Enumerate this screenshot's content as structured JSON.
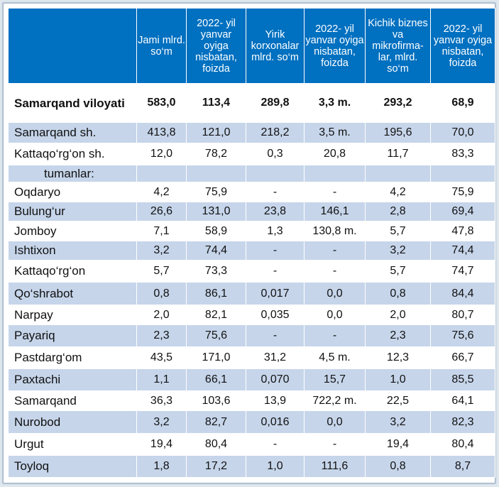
{
  "headers": [
    "",
    "Jami mlrd. so‘m",
    "2022- yil yanvar oyiga nisbatan, foizda",
    "Yirik korxonalar mlrd. so‘m",
    "2022- yil yanvar oyiga nisbatan, foizda",
    "Kichik biznes va mikrofirma-lar, mlrd. so‘m",
    "2022- yil yanvar oyiga nisbatan, foizda"
  ],
  "rows": [
    {
      "name": "Samarqand viloyati",
      "values": [
        "583,0",
        "113,4",
        "289,8",
        "3,3 m.",
        "293,2",
        "68,9"
      ]
    },
    {
      "name": "Samarqand sh.",
      "values": [
        "413,8",
        "121,0",
        "218,2",
        "3,5 m.",
        "195,6",
        "70,0"
      ]
    },
    {
      "name": "Kattaqo‘rg‘on  sh.",
      "values": [
        "12,0",
        "78,2",
        "0,3",
        "20,8",
        "11,7",
        "83,3"
      ]
    },
    {
      "name": "tumanlar:",
      "values": [
        "",
        "",
        "",
        "",
        "",
        ""
      ]
    },
    {
      "name": "Oqdaryo",
      "values": [
        "4,2",
        "75,9",
        "-",
        "-",
        "4,2",
        "75,9"
      ]
    },
    {
      "name": "Bulung‘ur",
      "values": [
        "26,6",
        "131,0",
        "23,8",
        "146,1",
        "2,8",
        "69,4"
      ]
    },
    {
      "name": "Jomboy",
      "values": [
        "7,1",
        "58,9",
        "1,3",
        "130,8 m.",
        "5,7",
        "47,8"
      ]
    },
    {
      "name": "Ishtixon",
      "values": [
        "3,2",
        "74,4",
        "-",
        "-",
        "3,2",
        "74,4"
      ]
    },
    {
      "name": "Kattaqo‘rg‘on",
      "values": [
        "5,7",
        "73,3",
        "-",
        "-",
        "5,7",
        "74,7"
      ]
    },
    {
      "name": "Qo‘shrabot",
      "values": [
        "0,8",
        "86,1",
        "0,017",
        "0,0",
        "0,8",
        "84,4"
      ]
    },
    {
      "name": "Narpay",
      "values": [
        "2,0",
        "82,1",
        "0,035",
        "0,0",
        "2,0",
        "80,7"
      ]
    },
    {
      "name": "Payariq",
      "values": [
        "2,3",
        "75,6",
        "-",
        "-",
        "2,3",
        "75,6"
      ]
    },
    {
      "name": "Pastdarg‘om",
      "values": [
        "43,5",
        "171,0",
        "31,2",
        "4,5 m.",
        "12,3",
        "66,7"
      ]
    },
    {
      "name": "Paxtachi",
      "values": [
        "1,1",
        "66,1",
        "0,070",
        "15,7",
        "1,0",
        "85,5"
      ]
    },
    {
      "name": "Samarqand",
      "values": [
        "36,3",
        "103,6",
        "13,9",
        "722,2 m.",
        "22,5",
        "64,1"
      ]
    },
    {
      "name": "Nurobod",
      "values": [
        "3,2",
        "82,7",
        "0,016",
        "0,0",
        "3,2",
        "82,3"
      ]
    },
    {
      "name": "Urgut",
      "values": [
        "19,4",
        "80,4",
        "-",
        "-",
        "19,4",
        "80,4"
      ]
    },
    {
      "name": "Toyloq",
      "values": [
        "1,8",
        "17,2",
        "1,0",
        "111,6",
        "0,8",
        "8,7"
      ]
    }
  ]
}
